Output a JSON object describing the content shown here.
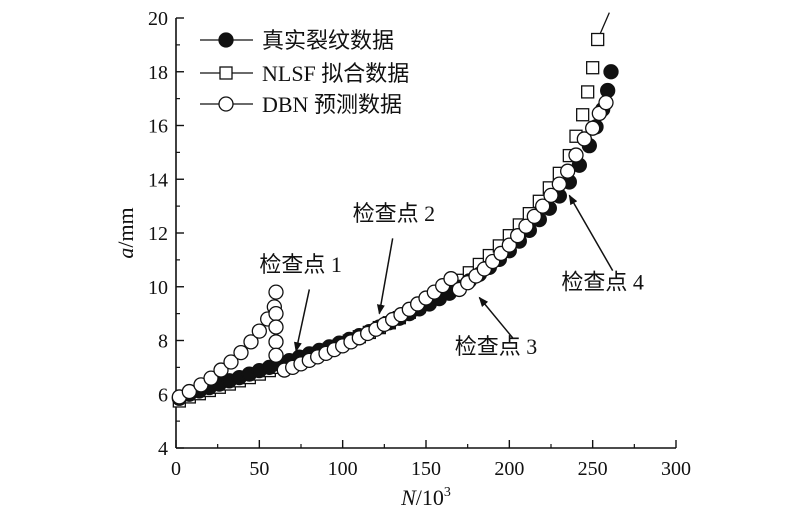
{
  "chart_data": {
    "type": "scatter",
    "xlabel_var": "N",
    "xlabel_unit": "/10",
    "xlabel_exp": "3",
    "ylabel_var": "a",
    "ylabel_unit": "/mm",
    "xlim": [
      0,
      300
    ],
    "ylim": [
      4,
      20
    ],
    "xticks": [
      0,
      50,
      100,
      150,
      200,
      250,
      300
    ],
    "yticks": [
      4,
      6,
      8,
      10,
      12,
      14,
      16,
      18,
      20
    ],
    "grid": false,
    "legend_position": "top-left",
    "series": [
      {
        "name": "真实裂纹数据",
        "marker": "filled-circle",
        "color": "#111111",
        "points": [
          [
            2,
            5.85
          ],
          [
            8,
            6.0
          ],
          [
            14,
            6.12
          ],
          [
            20,
            6.25
          ],
          [
            26,
            6.38
          ],
          [
            32,
            6.5
          ],
          [
            38,
            6.62
          ],
          [
            44,
            6.75
          ],
          [
            50,
            6.88
          ],
          [
            56,
            7.0
          ],
          [
            62,
            7.12
          ],
          [
            68,
            7.25
          ],
          [
            74,
            7.38
          ],
          [
            80,
            7.5
          ],
          [
            86,
            7.63
          ],
          [
            92,
            7.76
          ],
          [
            98,
            7.9
          ],
          [
            104,
            8.04
          ],
          [
            110,
            8.18
          ],
          [
            116,
            8.33
          ],
          [
            122,
            8.5
          ],
          [
            128,
            8.66
          ],
          [
            134,
            8.83
          ],
          [
            140,
            9.0
          ],
          [
            146,
            9.18
          ],
          [
            152,
            9.36
          ],
          [
            158,
            9.56
          ],
          [
            164,
            9.76
          ],
          [
            170,
            9.98
          ],
          [
            176,
            10.22
          ],
          [
            182,
            10.46
          ],
          [
            188,
            10.72
          ],
          [
            194,
            11.02
          ],
          [
            200,
            11.34
          ],
          [
            206,
            11.7
          ],
          [
            212,
            12.1
          ],
          [
            218,
            12.5
          ],
          [
            224,
            12.92
          ],
          [
            230,
            13.38
          ],
          [
            236,
            13.9
          ],
          [
            242,
            14.52
          ],
          [
            248,
            15.25
          ],
          [
            252,
            15.95
          ],
          [
            256,
            16.6
          ],
          [
            259,
            17.3
          ],
          [
            261,
            18.0
          ]
        ]
      },
      {
        "name": "NLSF 拟合数据",
        "marker": "open-square",
        "color": "#111111",
        "line_end": [
          260,
          20.2
        ],
        "points": [
          [
            2,
            5.75
          ],
          [
            8,
            5.9
          ],
          [
            14,
            6.02
          ],
          [
            20,
            6.14
          ],
          [
            26,
            6.26
          ],
          [
            32,
            6.38
          ],
          [
            38,
            6.5
          ],
          [
            44,
            6.62
          ],
          [
            50,
            6.75
          ],
          [
            56,
            6.88
          ],
          [
            62,
            7.0
          ],
          [
            68,
            7.13
          ],
          [
            74,
            7.26
          ],
          [
            80,
            7.4
          ],
          [
            86,
            7.54
          ],
          [
            92,
            7.68
          ],
          [
            98,
            7.82
          ],
          [
            104,
            7.98
          ],
          [
            110,
            8.14
          ],
          [
            116,
            8.3
          ],
          [
            122,
            8.48
          ],
          [
            128,
            8.66
          ],
          [
            134,
            8.85
          ],
          [
            140,
            9.05
          ],
          [
            146,
            9.26
          ],
          [
            152,
            9.48
          ],
          [
            158,
            9.72
          ],
          [
            164,
            9.97
          ],
          [
            170,
            10.24
          ],
          [
            176,
            10.52
          ],
          [
            182,
            10.83
          ],
          [
            188,
            11.16
          ],
          [
            194,
            11.52
          ],
          [
            200,
            11.9
          ],
          [
            206,
            12.3
          ],
          [
            212,
            12.72
          ],
          [
            218,
            13.18
          ],
          [
            224,
            13.68
          ],
          [
            230,
            14.22
          ],
          [
            236,
            14.88
          ],
          [
            240,
            15.6
          ],
          [
            244,
            16.4
          ],
          [
            247,
            17.25
          ],
          [
            250,
            18.15
          ],
          [
            253,
            19.2
          ]
        ]
      },
      {
        "name": "DBN 预测数据",
        "marker": "open-circle",
        "color": "#111111",
        "points": [
          [
            2,
            5.9
          ],
          [
            8,
            6.1
          ],
          [
            15,
            6.35
          ],
          [
            21,
            6.6
          ],
          [
            27,
            6.9
          ],
          [
            33,
            7.2
          ],
          [
            39,
            7.55
          ],
          [
            45,
            7.95
          ],
          [
            50,
            8.35
          ],
          [
            55,
            8.8
          ],
          [
            59,
            9.25
          ],
          [
            60,
            9.8
          ],
          [
            60,
            9.0
          ],
          [
            60,
            8.5
          ],
          [
            60,
            7.95
          ],
          [
            60,
            7.45
          ],
          [
            65,
            6.9
          ],
          [
            70,
            7.0
          ],
          [
            75,
            7.13
          ],
          [
            80,
            7.26
          ],
          [
            85,
            7.39
          ],
          [
            90,
            7.52
          ],
          [
            95,
            7.66
          ],
          [
            100,
            7.8
          ],
          [
            105,
            7.95
          ],
          [
            110,
            8.1
          ],
          [
            115,
            8.26
          ],
          [
            120,
            8.42
          ],
          [
            125,
            8.6
          ],
          [
            130,
            8.78
          ],
          [
            135,
            8.96
          ],
          [
            140,
            9.16
          ],
          [
            145,
            9.36
          ],
          [
            150,
            9.58
          ],
          [
            155,
            9.8
          ],
          [
            160,
            10.04
          ],
          [
            165,
            10.3
          ],
          [
            170,
            9.9
          ],
          [
            175,
            10.15
          ],
          [
            180,
            10.4
          ],
          [
            185,
            10.66
          ],
          [
            190,
            10.94
          ],
          [
            195,
            11.24
          ],
          [
            200,
            11.55
          ],
          [
            205,
            11.9
          ],
          [
            210,
            12.25
          ],
          [
            215,
            12.62
          ],
          [
            220,
            13.0
          ],
          [
            225,
            13.4
          ],
          [
            230,
            13.82
          ],
          [
            235,
            14.3
          ],
          [
            240,
            14.9
          ],
          [
            245,
            15.5
          ],
          [
            250,
            15.9
          ],
          [
            254,
            16.45
          ],
          [
            258,
            16.85
          ]
        ]
      }
    ],
    "annotations": [
      {
        "label": "检查点 1",
        "num": "1",
        "text_x": 50,
        "text_y": 10.55,
        "anchor": "start",
        "arrow_from": [
          80,
          9.9
        ],
        "arrow_to": [
          72,
          7.6
        ]
      },
      {
        "label": "检查点 2",
        "num": "2",
        "text_x": 106,
        "text_y": 12.45,
        "anchor": "start",
        "arrow_from": [
          130,
          11.8
        ],
        "arrow_to": [
          122,
          9.0
        ]
      },
      {
        "label": "检查点 3",
        "num": "3",
        "text_x": 192,
        "text_y": 7.5,
        "anchor": "middle",
        "arrow_from": [
          202,
          8.1
        ],
        "arrow_to": [
          182,
          9.6
        ]
      },
      {
        "label": "检查点 4",
        "num": "4",
        "text_x": 256,
        "text_y": 9.9,
        "anchor": "middle",
        "arrow_from": [
          262,
          10.6
        ],
        "arrow_to": [
          236,
          13.4
        ]
      }
    ]
  }
}
